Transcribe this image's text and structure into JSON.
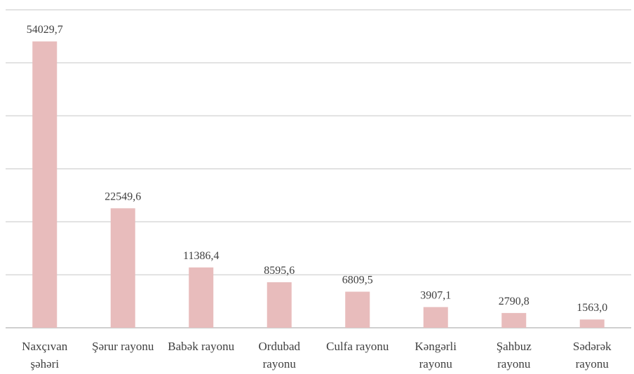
{
  "chart_data": {
    "type": "bar",
    "categories": [
      "Naxçıvan şəhəri",
      "Şərur rayonu",
      "Babək rayonu",
      "Ordubad rayonu",
      "Culfa rayonu",
      "Kəngərli rayonu",
      "Şahbuz rayonu",
      "Sədərək rayonu"
    ],
    "values": [
      54029.7,
      22549.6,
      11386.4,
      8595.6,
      6809.5,
      3907.1,
      2790.8,
      1563.0
    ],
    "value_labels": [
      "54029,7",
      "22549,6",
      "11386,4",
      "8595,6",
      "6809,5",
      "3907,1",
      "2790,8",
      "1563,0"
    ],
    "color": "#e8bcbc",
    "ylim": [
      0,
      60000
    ],
    "yticks": [
      0,
      10000,
      20000,
      30000,
      40000,
      50000,
      60000
    ],
    "grid": true
  }
}
